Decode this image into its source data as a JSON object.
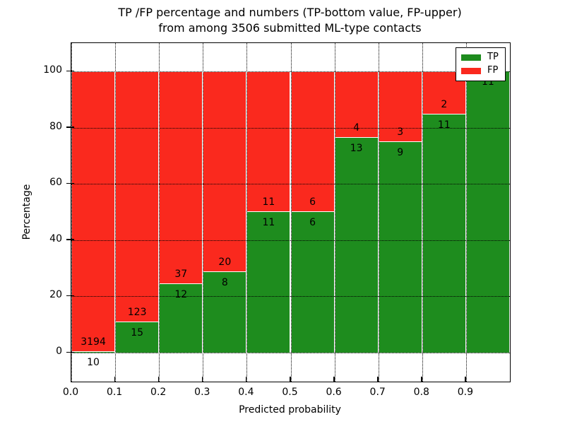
{
  "chart_data": {
    "type": "bar",
    "stacked": true,
    "title_line1": "TP /FP percentage and numbers (TP-bottom value, FP-upper)",
    "title_line2": "from among 3506 submitted ML-type contacts",
    "xlabel": "Predicted probability",
    "ylabel": "Percentage",
    "total_contacts": 3506,
    "xlim": [
      0.0,
      1.0
    ],
    "ylim": [
      -10,
      110
    ],
    "grid": "dotted",
    "xticks": [
      {
        "value": 0.0,
        "label": "0.0"
      },
      {
        "value": 0.1,
        "label": "0.1"
      },
      {
        "value": 0.2,
        "label": "0.2"
      },
      {
        "value": 0.3,
        "label": "0.3"
      },
      {
        "value": 0.4,
        "label": "0.4"
      },
      {
        "value": 0.5,
        "label": "0.5"
      },
      {
        "value": 0.6,
        "label": "0.6"
      },
      {
        "value": 0.7,
        "label": "0.7"
      },
      {
        "value": 0.8,
        "label": "0.8"
      },
      {
        "value": 0.9,
        "label": "0.9"
      }
    ],
    "yticks": [
      {
        "value": 0,
        "label": "0"
      },
      {
        "value": 20,
        "label": "20"
      },
      {
        "value": 40,
        "label": "40"
      },
      {
        "value": 60,
        "label": "60"
      },
      {
        "value": 80,
        "label": "80"
      },
      {
        "value": 100,
        "label": "100"
      }
    ],
    "bins": [
      {
        "range": [
          0.0,
          0.1
        ],
        "tp": 10,
        "fp": 3194,
        "tp_pct": 0.31,
        "tp_label": "10",
        "fp_label": "3194"
      },
      {
        "range": [
          0.1,
          0.2
        ],
        "tp": 15,
        "fp": 123,
        "tp_pct": 10.87,
        "tp_label": "15",
        "fp_label": "123"
      },
      {
        "range": [
          0.2,
          0.3
        ],
        "tp": 12,
        "fp": 37,
        "tp_pct": 24.49,
        "tp_label": "12",
        "fp_label": "37"
      },
      {
        "range": [
          0.3,
          0.4
        ],
        "tp": 8,
        "fp": 20,
        "tp_pct": 28.57,
        "tp_label": "8",
        "fp_label": "20"
      },
      {
        "range": [
          0.4,
          0.5
        ],
        "tp": 11,
        "fp": 11,
        "tp_pct": 50.0,
        "tp_label": "11",
        "fp_label": "11"
      },
      {
        "range": [
          0.5,
          0.6
        ],
        "tp": 6,
        "fp": 6,
        "tp_pct": 50.0,
        "tp_label": "6",
        "fp_label": "6"
      },
      {
        "range": [
          0.6,
          0.7
        ],
        "tp": 13,
        "fp": 4,
        "tp_pct": 76.47,
        "tp_label": "13",
        "fp_label": "4"
      },
      {
        "range": [
          0.7,
          0.8
        ],
        "tp": 9,
        "fp": 3,
        "tp_pct": 75.0,
        "tp_label": "9",
        "fp_label": "3"
      },
      {
        "range": [
          0.8,
          0.9
        ],
        "tp": 11,
        "fp": 2,
        "tp_pct": 84.62,
        "tp_label": "11",
        "fp_label": "2"
      },
      {
        "range": [
          0.9,
          1.0
        ],
        "tp": 11,
        "fp": 0,
        "tp_pct": 100.0,
        "tp_label": "11",
        "fp_label": ""
      }
    ],
    "legend": {
      "position": "upper right",
      "items": [
        {
          "label": "TP",
          "color": "#1e8c1e"
        },
        {
          "label": "FP",
          "color": "#fa291e"
        }
      ]
    },
    "colors": {
      "tp": "#1e8c1e",
      "fp": "#fa291e",
      "grid": "#000000",
      "bar_edge": "#ffffff",
      "background": "#ffffff",
      "text": "#000000"
    }
  }
}
